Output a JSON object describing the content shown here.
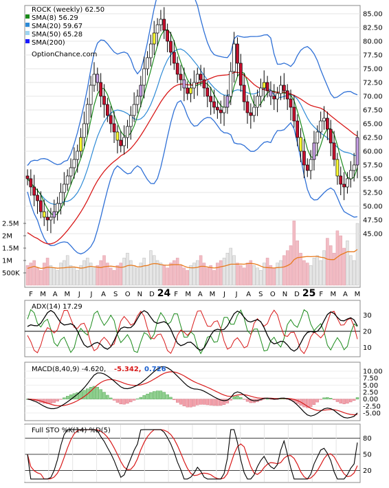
{
  "chart_data": {
    "type": "candlestick",
    "title": "ROCK (weekly) 62.50",
    "watermark": "OptionChance.com",
    "legend": [
      {
        "label": "SMA(8) 56.29",
        "color": "#1a8a1a"
      },
      {
        "label": "SMA(20) 59.67",
        "color": "#2d8ad6"
      },
      {
        "label": "SMA(50) 65.28",
        "color": "#9ed4f0"
      },
      {
        "label": "SMA(200)",
        "color": "#1a1aff"
      }
    ],
    "x_labels": [
      "F",
      "M",
      "A",
      "M",
      "J",
      "J",
      "A",
      "S",
      "O",
      "N",
      "D",
      "24",
      "F",
      "M",
      "A",
      "M",
      "J",
      "J",
      "A",
      "S",
      "O",
      "N",
      "D",
      "25",
      "F",
      "M",
      "A",
      "M"
    ],
    "price_axis": {
      "ticks": [
        "85.00",
        "82.50",
        "80.00",
        "77.50",
        "75.00",
        "72.50",
        "70.00",
        "67.50",
        "65.00",
        "62.50",
        "60.00",
        "57.50",
        "55.00",
        "52.50",
        "50.00",
        "47.50",
        "45.00"
      ],
      "ylim": [
        45,
        85
      ]
    },
    "volume_axis": {
      "ticks": [
        "2.5M",
        "2M",
        "1.5M",
        "1M",
        "500K"
      ]
    },
    "close_series": [
      55.0,
      53.5,
      52.0,
      51.0,
      49.0,
      48.0,
      47.5,
      48.0,
      49.0,
      50.5,
      52.5,
      54.0,
      55.5,
      57.0,
      58.5,
      60.0,
      62.5,
      65.0,
      68.5,
      72.0,
      74.0,
      72.5,
      70.0,
      68.5,
      66.5,
      65.0,
      63.5,
      62.0,
      61.0,
      62.5,
      64.5,
      66.5,
      68.5,
      70.0,
      72.0,
      75.0,
      77.0,
      79.5,
      81.5,
      83.0,
      84.0,
      82.0,
      80.0,
      78.0,
      76.0,
      74.0,
      73.0,
      71.5,
      70.5,
      71.5,
      72.5,
      74.0,
      73.0,
      71.5,
      70.0,
      69.0,
      68.0,
      67.5,
      67.0,
      68.0,
      70.0,
      74.5,
      79.5,
      76.0,
      72.0,
      69.0,
      67.0,
      66.5,
      68.0,
      70.0,
      71.5,
      72.5,
      71.0,
      70.0,
      69.5,
      70.5,
      72.0,
      71.0,
      69.5,
      68.0,
      65.5,
      62.5,
      60.0,
      57.5,
      56.5,
      58.5,
      61.5,
      63.5,
      65.5,
      66.0,
      64.0,
      61.5,
      58.5,
      55.5,
      54.0,
      53.5,
      55.0,
      56.5,
      57.5,
      62.5
    ],
    "volume_series": [
      0.8,
      0.9,
      1.0,
      0.7,
      0.6,
      0.9,
      1.1,
      0.8,
      0.7,
      0.6,
      0.9,
      1.0,
      1.2,
      0.8,
      0.7,
      0.6,
      0.8,
      1.0,
      1.1,
      0.9,
      0.7,
      0.8,
      1.0,
      1.2,
      0.9,
      0.7,
      0.6,
      0.8,
      0.9,
      1.1,
      1.3,
      1.0,
      0.8,
      0.7,
      0.9,
      1.1,
      0.8,
      1.4,
      1.2,
      1.0,
      0.9,
      0.8,
      0.7,
      0.9,
      1.0,
      1.1,
      0.8,
      0.7,
      0.6,
      0.8,
      0.9,
      1.0,
      1.2,
      0.9,
      0.7,
      0.8,
      0.6,
      0.9,
      1.0,
      1.1,
      1.3,
      1.5,
      1.2,
      0.9,
      0.8,
      0.7,
      0.9,
      1.0,
      0.8,
      0.7,
      0.6,
      0.9,
      1.1,
      0.8,
      0.7,
      0.9,
      1.0,
      1.2,
      1.4,
      1.6,
      2.6,
      1.8,
      1.3,
      1.0,
      0.9,
      0.8,
      1.1,
      1.2,
      1.0,
      1.4,
      1.9,
      1.6,
      1.3,
      2.2,
      2.0,
      1.5,
      1.8,
      1.2,
      1.0,
      2.5
    ],
    "adx_panel": {
      "label": "ADX(14) 17.29",
      "ticks": [
        "30",
        "20",
        "10"
      ],
      "ylim": [
        5,
        38
      ]
    },
    "macd_panel": {
      "label": "MACD(8,40,9) -4.620,",
      "macd_value": "-5.342,",
      "signal_value": "0.726",
      "ticks": [
        "10.00",
        "7.50",
        "5.00",
        "2.50",
        "0.00",
        "-2.50",
        "-5.00"
      ],
      "ylim": [
        -7,
        11
      ]
    },
    "sto_panel": {
      "label": "Full STO %K(14) %D(5)",
      "ticks": [
        "80",
        "50",
        "20"
      ],
      "ylim": [
        0,
        100
      ]
    }
  }
}
